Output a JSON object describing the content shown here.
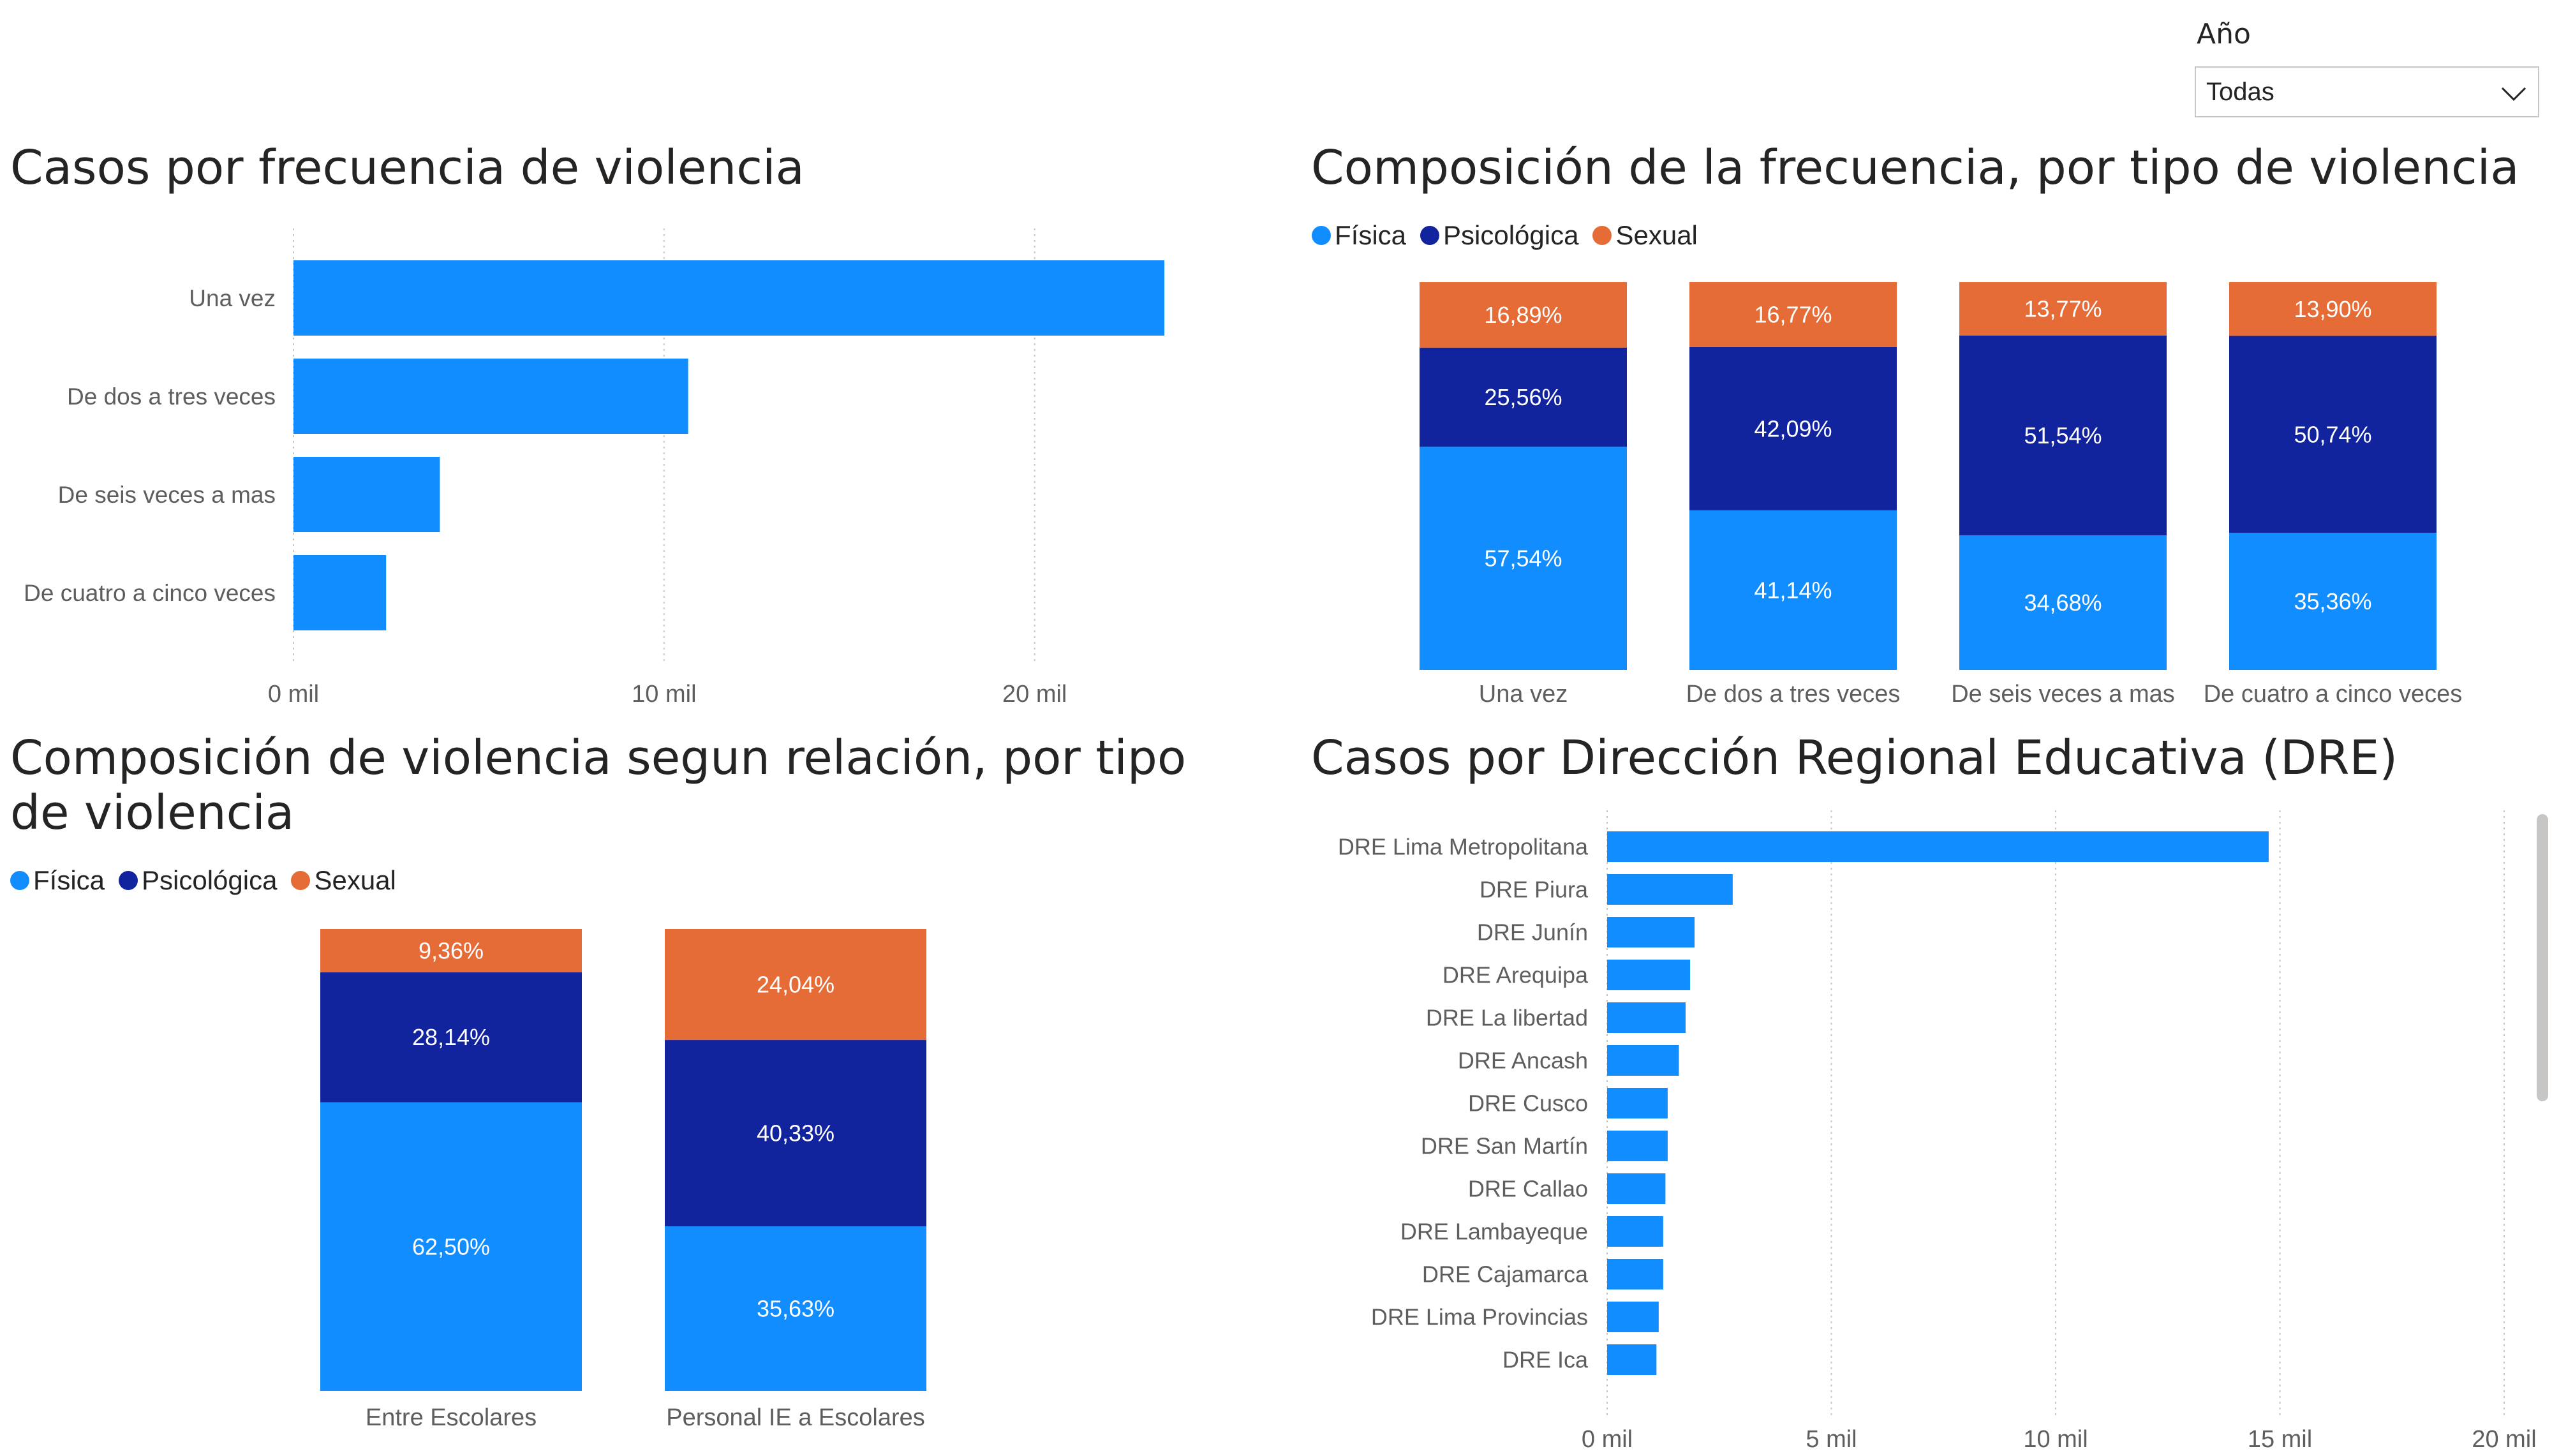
{
  "slicer": {
    "label": "Año",
    "value": "Todas"
  },
  "colors": {
    "fisica": "#118dff",
    "psicologica": "#12239e",
    "sexual": "#e66c37"
  },
  "chart_data": [
    {
      "id": "frecuencia",
      "type": "bar",
      "orientation": "horizontal",
      "title": "Casos por frecuencia de violencia",
      "categories": [
        "Una vez",
        "De dos a tres veces",
        "De seis veces a mas",
        "De cuatro a cinco veces"
      ],
      "values": [
        23500,
        10650,
        3950,
        2500
      ],
      "xlim": [
        0,
        23500
      ],
      "ticks": [
        0,
        10000,
        20000
      ],
      "tick_labels": [
        "0 mil",
        "10 mil",
        "20 mil"
      ],
      "grid": true
    },
    {
      "id": "composicion_frecuencia",
      "type": "bar",
      "stacked": "100%",
      "title": "Composición de la frecuencia, por tipo de violencia",
      "categories": [
        "Una vez",
        "De dos a tres veces",
        "De seis veces a mas",
        "De cuatro a cinco veces"
      ],
      "series": [
        {
          "name": "Física",
          "values": [
            57.54,
            41.14,
            34.68,
            35.36
          ],
          "labels": [
            "57,54%",
            "41,14%",
            "34,68%",
            "35,36%"
          ]
        },
        {
          "name": "Psicológica",
          "values": [
            25.56,
            42.09,
            51.54,
            50.74
          ],
          "labels": [
            "25,56%",
            "42,09%",
            "51,54%",
            "50,74%"
          ]
        },
        {
          "name": "Sexual",
          "values": [
            16.89,
            16.77,
            13.77,
            13.9
          ],
          "labels": [
            "16,89%",
            "16,77%",
            "13,77%",
            "13,90%"
          ]
        }
      ],
      "legend": "top-left"
    },
    {
      "id": "composicion_relacion",
      "type": "bar",
      "stacked": "100%",
      "title": "Composición de violencia segun relación, por tipo de violencia",
      "categories": [
        "Entre Escolares",
        "Personal IE a Escolares"
      ],
      "series": [
        {
          "name": "Física",
          "values": [
            62.5,
            35.63
          ],
          "labels": [
            "62,50%",
            "35,63%"
          ]
        },
        {
          "name": "Psicológica",
          "values": [
            28.14,
            40.33
          ],
          "labels": [
            "28,14%",
            "40,33%"
          ]
        },
        {
          "name": "Sexual",
          "values": [
            9.36,
            24.04
          ],
          "labels": [
            "9,36%",
            "24,04%"
          ]
        }
      ],
      "legend": "top-left"
    },
    {
      "id": "dre",
      "type": "bar",
      "orientation": "horizontal",
      "title": "Casos por Dirección Regional Educativa (DRE)",
      "categories": [
        "DRE Lima Metropolitana",
        "DRE Piura",
        "DRE Junín",
        "DRE Arequipa",
        "DRE La libertad",
        "DRE Ancash",
        "DRE Cusco",
        "DRE San Martín",
        "DRE Callao",
        "DRE Lambayeque",
        "DRE Cajamarca",
        "DRE Lima Provincias",
        "DRE Ica"
      ],
      "values": [
        14750,
        2800,
        1950,
        1850,
        1750,
        1600,
        1350,
        1350,
        1300,
        1250,
        1250,
        1150,
        1100
      ],
      "xlim": [
        0,
        20000
      ],
      "ticks": [
        0,
        5000,
        10000,
        15000,
        20000
      ],
      "tick_labels": [
        "0 mil",
        "5 mil",
        "10 mil",
        "15 mil",
        "20 mil"
      ],
      "grid": true
    }
  ]
}
